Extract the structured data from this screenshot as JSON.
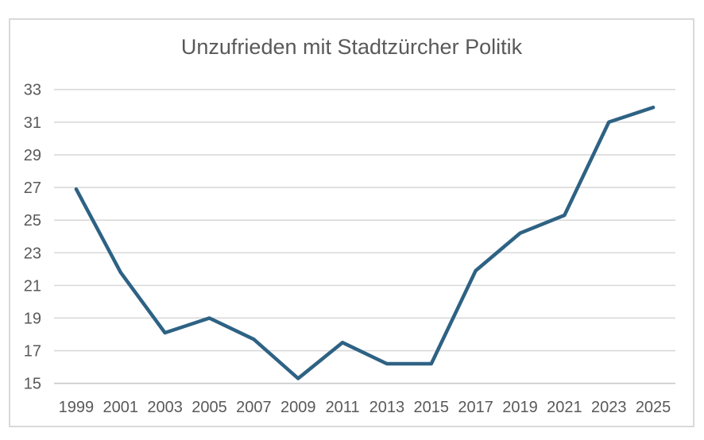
{
  "chart_data": {
    "type": "line",
    "title": "Unzufrieden mit Stadtzürcher Politik",
    "categories": [
      "1999",
      "2001",
      "2003",
      "2005",
      "2007",
      "2009",
      "2011",
      "2013",
      "2015",
      "2017",
      "2019",
      "2021",
      "2023",
      "2025"
    ],
    "values": [
      26.9,
      21.8,
      18.1,
      19.0,
      17.7,
      15.3,
      17.5,
      16.2,
      16.2,
      21.9,
      24.2,
      25.3,
      31.0,
      31.9
    ],
    "xlabel": "",
    "ylabel": "",
    "ylim": [
      15,
      33
    ],
    "ytick_step": 2,
    "yticks": [
      15,
      17,
      19,
      21,
      23,
      25,
      27,
      29,
      31,
      33
    ],
    "grid": true,
    "legend": "none",
    "colors": {
      "line": "#2E6284",
      "grid": "#D9D9D9",
      "axis": "#C9C9C9",
      "text": "#595959",
      "frame_border": "#D9D9D9",
      "background": "#FFFFFF"
    }
  }
}
